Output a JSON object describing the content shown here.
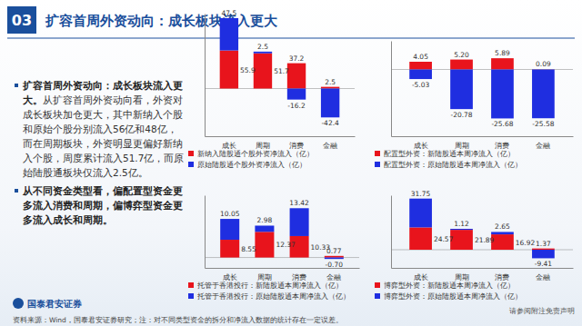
{
  "header": {
    "number": "03",
    "title": "扩容首周外资动向：成长板块流入更大"
  },
  "text": {
    "bullets": [
      {
        "bold": "扩容首周外资动向：成长板块流入更大。",
        "text": "从扩容首周外资动向看，外资对成长板块加仓更大，其中新纳入个股和原始个股分别流入56亿和48亿，而在周期板块，外资明显更偏好新纳入个股，周度累计流入51.7亿，而原始陆股通板块仅流入2.5亿。"
      },
      {
        "bold": "从不同资金类型看，偏配置型资金更多流入消费和周期，偏博弈型资金更多流入成长和周期。"
      }
    ]
  },
  "chart_data": [
    {
      "type": "bar",
      "stacked": true,
      "data_labels": true,
      "tick_labels": "x",
      "legend": "bottom",
      "categories": [
        "成长",
        "周期",
        "消费",
        "金融"
      ],
      "ylim": [
        -70,
        110
      ],
      "series": [
        {
          "name": "新纳入陆股通个股外资净流入（亿）",
          "color": "#e8141c",
          "values": [
            55.9,
            51.7,
            37.2,
            2.5
          ]
        },
        {
          "name": "原始陆股通个股外资净流入（亿）",
          "color": "#1f2ee0",
          "values": [
            47.5,
            2.5,
            -16.2,
            -42.4
          ]
        }
      ]
    },
    {
      "type": "bar",
      "stacked": true,
      "data_labels": true,
      "tick_labels": "x",
      "legend": "bottom",
      "categories": [
        "成长",
        "周期",
        "消费",
        "金融"
      ],
      "ylim": [
        -35,
        15
      ],
      "series": [
        {
          "name": "配置型外资：新陆股通本周净流入（亿）",
          "color": "#e8141c",
          "values": [
            4.05,
            5.2,
            5.89,
            0.09
          ],
          "value_labels": [
            "4.05",
            "5.20",
            "5.89",
            "0.09"
          ]
        },
        {
          "name": "配置型外资：原始陆股通本周净流入（亿）",
          "color": "#1f2ee0",
          "values": [
            -5.03,
            -20.78,
            -25.68,
            -25.58
          ]
        }
      ]
    },
    {
      "type": "bar",
      "stacked": true,
      "data_labels": true,
      "tick_labels": "x",
      "legend": "bottom",
      "categories": [
        "成长",
        "周期",
        "消费",
        "金融"
      ],
      "ylim": [
        -5,
        30
      ],
      "series": [
        {
          "name": "托管于香港投行：新陆股通本周净流入（亿）",
          "color": "#e8141c",
          "values": [
            8.55,
            12.37,
            10.33,
            0.77
          ]
        },
        {
          "name": "托管于香港投行：原始陆股通本周净流入（亿）",
          "color": "#1f2ee0",
          "values": [
            10.05,
            2.98,
            13.42,
            -0.7
          ],
          "value_labels": [
            "10.05",
            "2.98",
            "13.42",
            "-0.70"
          ]
        }
      ]
    },
    {
      "type": "bar",
      "stacked": true,
      "data_labels": true,
      "tick_labels": "x",
      "legend": "bottom",
      "categories": [
        "成长",
        "周期",
        "消费",
        "金融"
      ],
      "ylim": [
        -20,
        60
      ],
      "series": [
        {
          "name": "博弈型外资：新陆股通本周净流入（亿）",
          "color": "#e8141c",
          "values": [
            24.57,
            21.89,
            16.92,
            1.37
          ]
        },
        {
          "name": "博弈型外资：原始陆股通本周净流入（亿）",
          "color": "#1f2ee0",
          "values": [
            31.75,
            1.12,
            2.65,
            -9.41
          ]
        }
      ]
    }
  ],
  "footer": {
    "logo": "国泰君安证券",
    "disclaimer": "请参阅附注免责声明",
    "source": "资料来源：Wind，国泰君安证券研究；注：对不同类型资金的拆分和净流入数据的统计存在一定误差。"
  }
}
